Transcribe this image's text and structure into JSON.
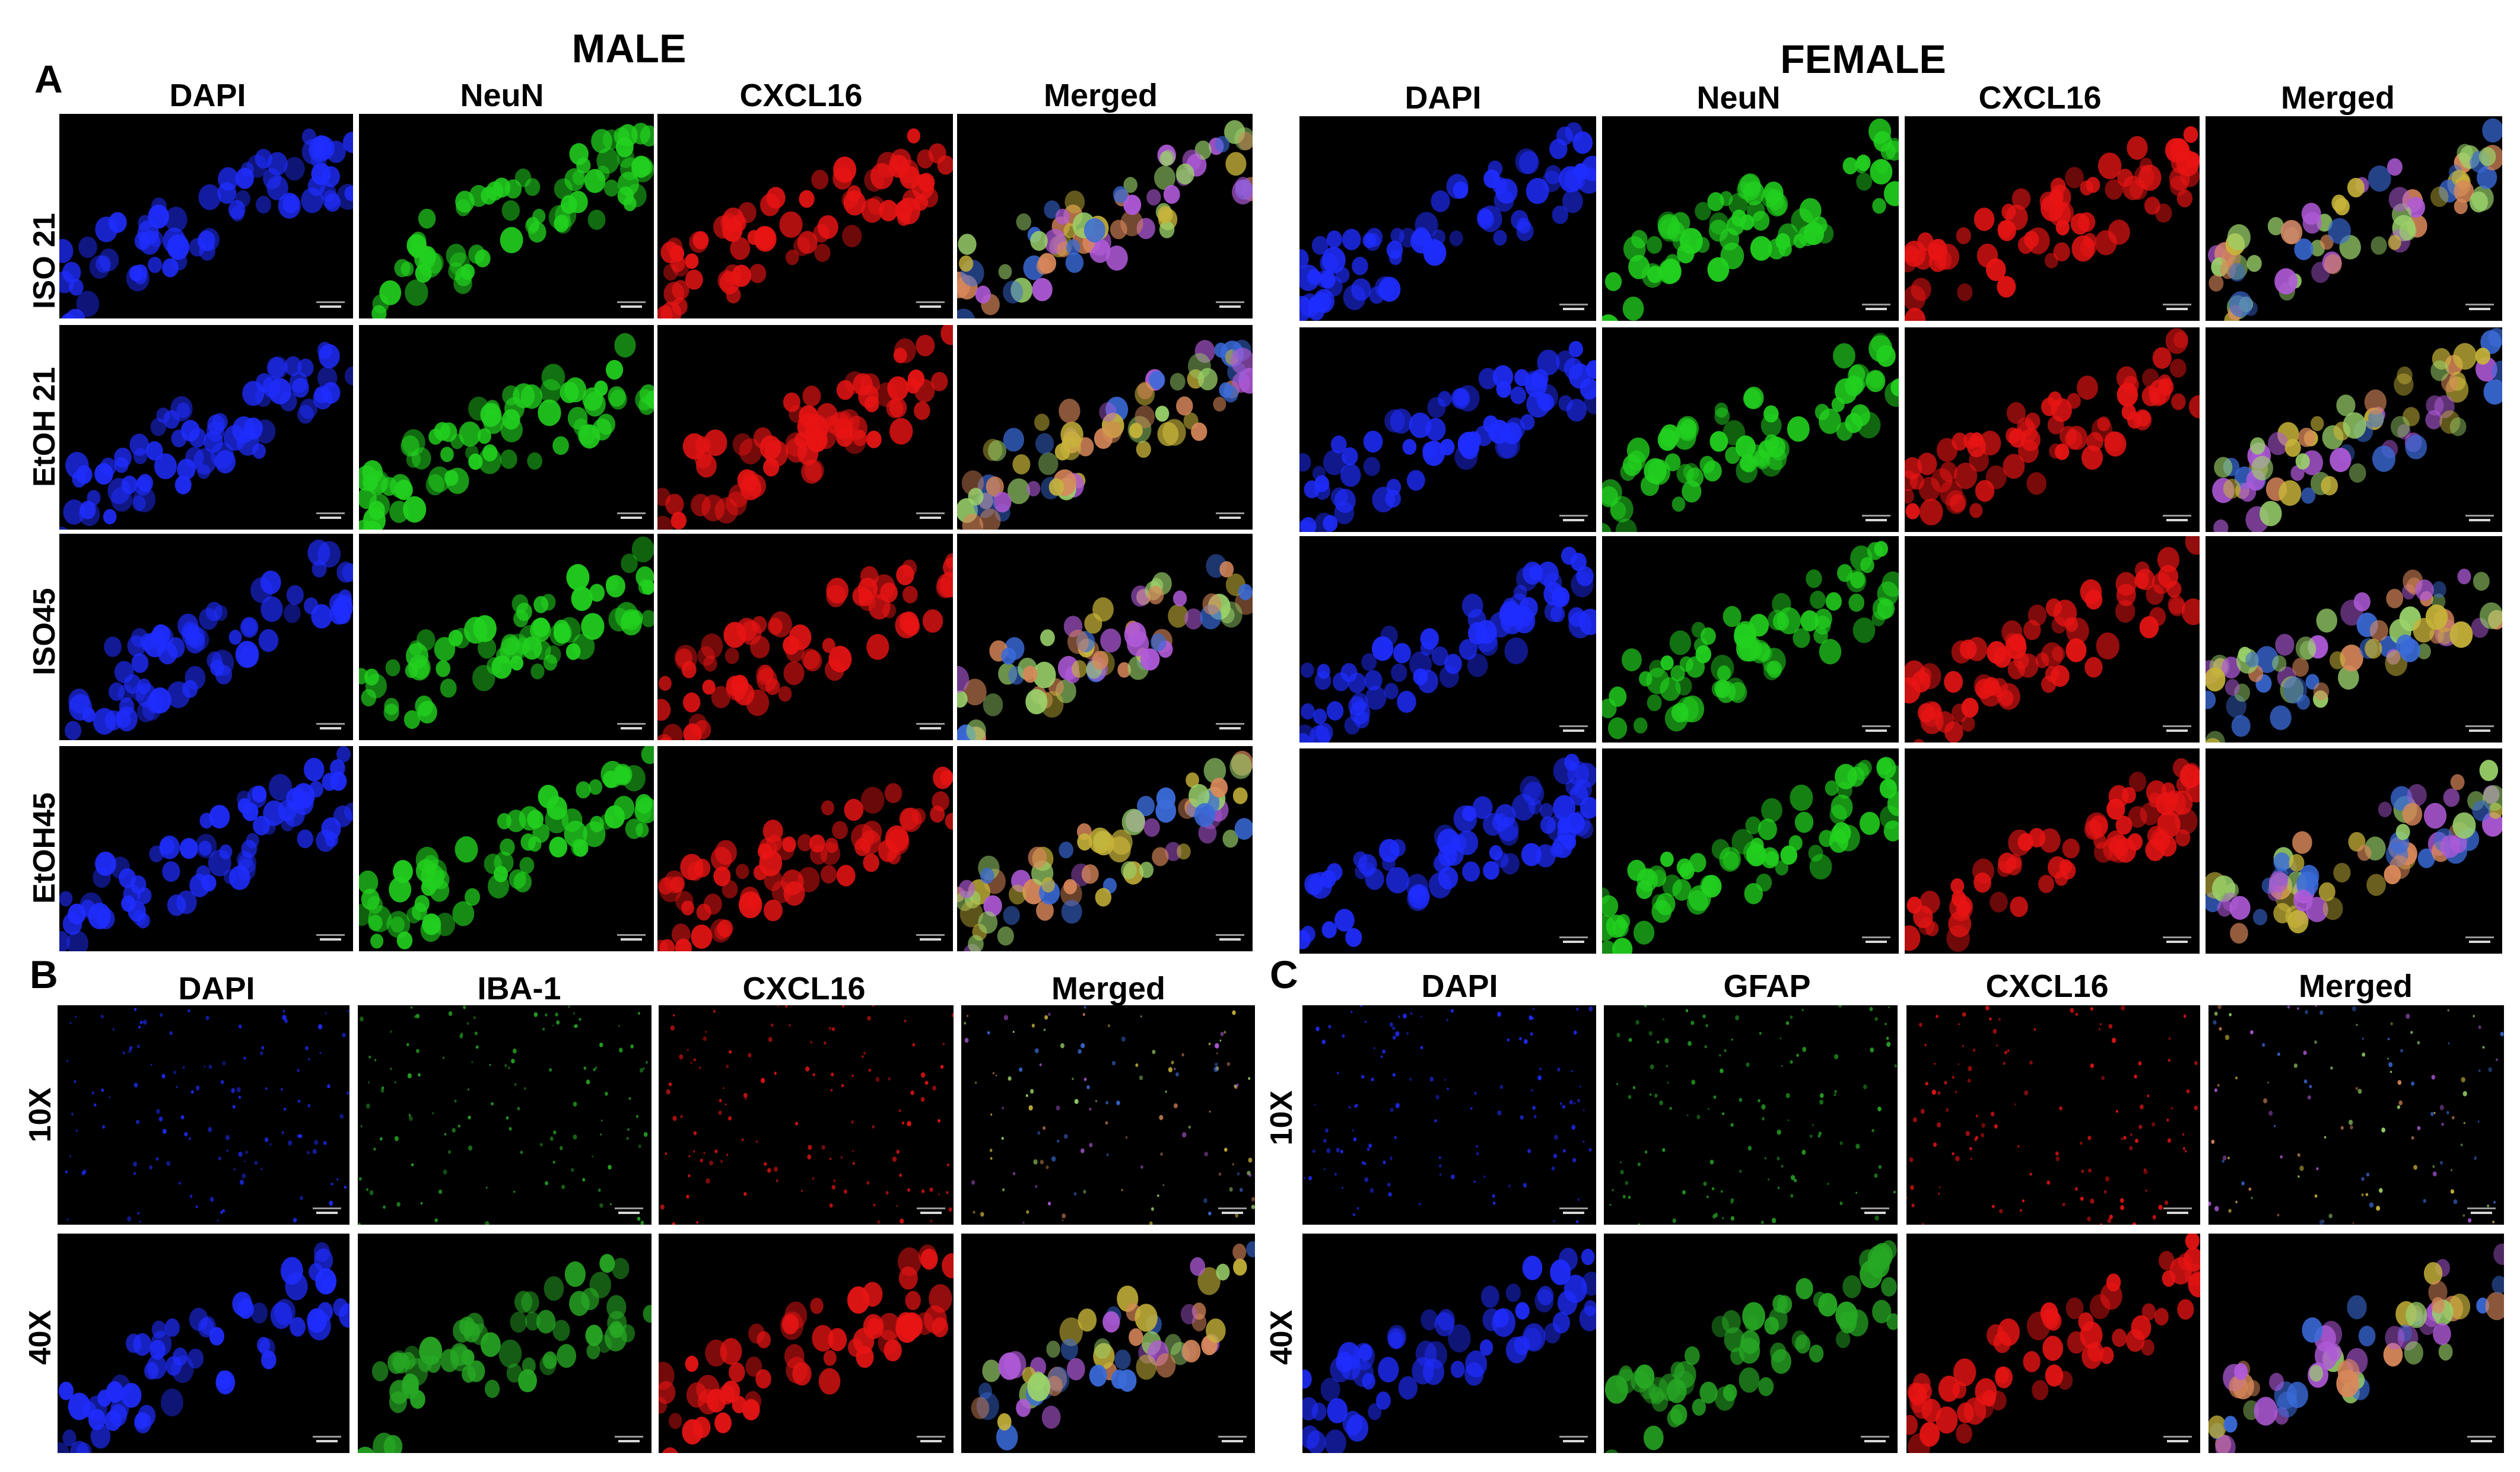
{
  "panels": {
    "A": "A",
    "B": "B",
    "C": "C"
  },
  "titles": {
    "male": "MALE",
    "female": "FEMALE"
  },
  "panelA": {
    "columns": [
      "DAPI",
      "NeuN",
      "CXCL16",
      "Merged"
    ],
    "rows": [
      "ISO 21",
      "EtOH 21",
      "ISO45",
      "EtOH45"
    ]
  },
  "panelB": {
    "columns": [
      "DAPI",
      "IBA-1",
      "CXCL16",
      "Merged"
    ],
    "rows": [
      "10X",
      "40X"
    ]
  },
  "panelC": {
    "columns": [
      "DAPI",
      "GFAP",
      "CXCL16",
      "Merged"
    ],
    "rows": [
      "10X",
      "40X"
    ]
  },
  "stain_colors": {
    "DAPI": "#1f2dff",
    "NeuN": "#22d11f",
    "CXCL16": "#e81414",
    "Merged": "#c8b43a",
    "IBA-1": "#27a824",
    "GFAP": "#27a824",
    "background": "#000000"
  }
}
